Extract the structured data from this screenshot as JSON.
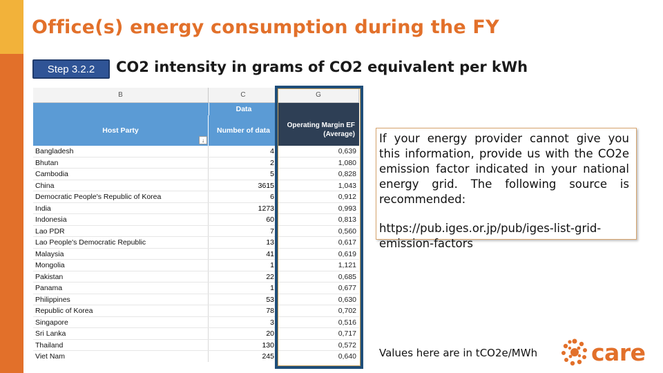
{
  "title": "Office(s) energy consumption during the FY",
  "step_button": "Step 3.2.2",
  "subtitle": "CO2 intensity in grams of CO2 equivalent per kWh",
  "sheet": {
    "column_letters": [
      "B",
      "C",
      "G"
    ],
    "group_label": "Data",
    "headers": {
      "host_party": "Host Party",
      "number_of_data": "Number of data",
      "operating_margin": "Operating Margin EF (Average)"
    },
    "sort_icon": "↓",
    "rows": [
      {
        "party": "Bangladesh",
        "count": "4",
        "ef": "0,639"
      },
      {
        "party": "Bhutan",
        "count": "2",
        "ef": "1,080"
      },
      {
        "party": "Cambodia",
        "count": "5",
        "ef": "0,828"
      },
      {
        "party": "China",
        "count": "3615",
        "ef": "1,043"
      },
      {
        "party": "Democratic People's Republic of Korea",
        "count": "6",
        "ef": "0,912"
      },
      {
        "party": "India",
        "count": "1273",
        "ef": "0,993"
      },
      {
        "party": "Indonesia",
        "count": "60",
        "ef": "0,813"
      },
      {
        "party": "Lao PDR",
        "count": "7",
        "ef": "0,560"
      },
      {
        "party": "Lao People's Democratic Republic",
        "count": "13",
        "ef": "0,617"
      },
      {
        "party": "Malaysia",
        "count": "41",
        "ef": "0,619"
      },
      {
        "party": "Mongolia",
        "count": "1",
        "ef": "1,121"
      },
      {
        "party": "Pakistan",
        "count": "22",
        "ef": "0,685"
      },
      {
        "party": "Panama",
        "count": "1",
        "ef": "0,677"
      },
      {
        "party": "Philippines",
        "count": "53",
        "ef": "0,630"
      },
      {
        "party": "Republic of Korea",
        "count": "78",
        "ef": "0,702"
      },
      {
        "party": "Singapore",
        "count": "3",
        "ef": "0,516"
      },
      {
        "party": "Sri Lanka",
        "count": "20",
        "ef": "0,717"
      },
      {
        "party": "Thailand",
        "count": "130",
        "ef": "0,572"
      },
      {
        "party": "Viet Nam",
        "count": "245",
        "ef": "0,640"
      }
    ]
  },
  "info": {
    "text": "If your energy provider cannot give you this information, provide us with the CO2e emission factor indicated in your national energy grid. The following source is recommended:",
    "url": "https://pub.iges.or.jp/pub/iges-list-grid-emission-factors"
  },
  "footer_note": "Values here are in tCO2e/MWh",
  "logo": {
    "text": "care",
    "icon": "care-logo-icon",
    "color": "#e2702a"
  },
  "colors": {
    "accent": "#e2702a",
    "secondary": "#f2b23a",
    "header_blue": "#5b9bd5",
    "highlight": "#1f4e79"
  }
}
